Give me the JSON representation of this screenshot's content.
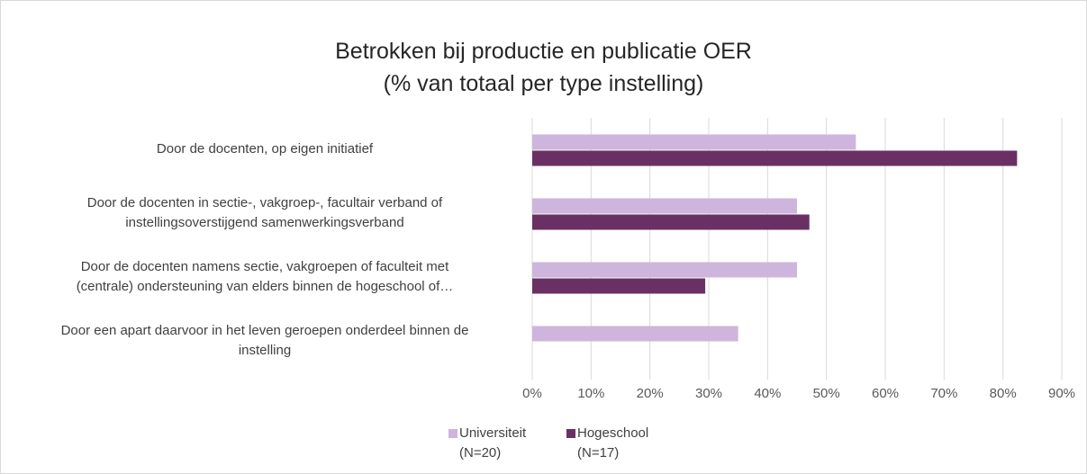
{
  "chart_data": {
    "type": "bar",
    "orientation": "horizontal",
    "title": "Betrokken bij productie en publicatie OER\n(% van totaal per type instelling)",
    "categories": [
      "Door de docenten, op eigen initiatief",
      "Door de docenten in sectie-, vakgroep-, facultair verband of\ninstellingsoverstijgend samenwerkingsverband",
      "Door de docenten namens sectie, vakgroepen of faculteit met\n(centrale) ondersteuning van elders binnen de hogeschool of…",
      "Door een apart daarvoor in het leven geroepen onderdeel binnen de\ninstelling"
    ],
    "series": [
      {
        "name": "Universiteit\n(N=20)",
        "color": "#cdb5dd",
        "values": [
          55,
          45,
          45,
          35
        ]
      },
      {
        "name": "Hogeschool\n(N=17)",
        "color": "#6a3064",
        "values": [
          82.4,
          47.1,
          29.4,
          0
        ]
      }
    ],
    "xlim": [
      0,
      90
    ],
    "xticks": [
      {
        "value": 0,
        "label": "0%"
      },
      {
        "value": 10,
        "label": "10%"
      },
      {
        "value": 20,
        "label": "20%"
      },
      {
        "value": 30,
        "label": "30%"
      },
      {
        "value": 40,
        "label": "40%"
      },
      {
        "value": 50,
        "label": "50%"
      },
      {
        "value": 60,
        "label": "60%"
      },
      {
        "value": 70,
        "label": "70%"
      },
      {
        "value": 80,
        "label": "80%"
      },
      {
        "value": 90,
        "label": "90%"
      }
    ],
    "grid": true,
    "legend": "bottom"
  }
}
